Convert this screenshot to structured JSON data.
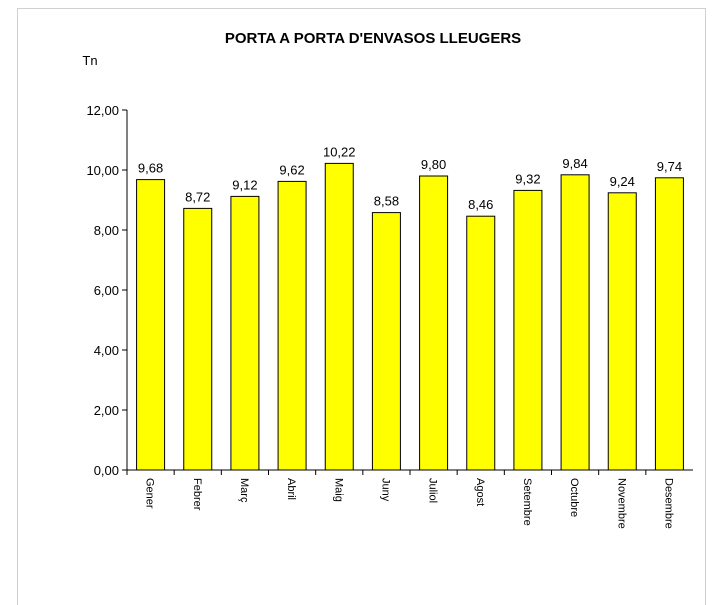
{
  "chart_data": {
    "type": "bar",
    "title": "PORTA A PORTA D'ENVASOS LLEUGERS",
    "y_axis_label": "Tn",
    "categories": [
      "Gener",
      "Febrer",
      "Març",
      "Abril",
      "Maig",
      "Juny",
      "Juliol",
      "Agost",
      "Setembre",
      "Octubre",
      "Novembre",
      "Desembre"
    ],
    "values": [
      9.68,
      8.72,
      9.12,
      9.62,
      10.22,
      8.58,
      9.8,
      8.46,
      9.32,
      9.84,
      9.24,
      9.74
    ],
    "value_labels": [
      "9,68",
      "8,72",
      "9,12",
      "9,62",
      "10,22",
      "8,58",
      "9,80",
      "8,46",
      "9,32",
      "9,84",
      "9,24",
      "9,74"
    ],
    "color": "#ffff00",
    "ylim": [
      0,
      12
    ],
    "yticks": [
      {
        "value": 0,
        "label": "0,00"
      },
      {
        "value": 2,
        "label": "2,00"
      },
      {
        "value": 4,
        "label": "4,00"
      },
      {
        "value": 6,
        "label": "6,00"
      },
      {
        "value": 8,
        "label": "8,00"
      },
      {
        "value": 10,
        "label": "10,00"
      },
      {
        "value": 12,
        "label": "12,00"
      }
    ],
    "grid": false
  }
}
